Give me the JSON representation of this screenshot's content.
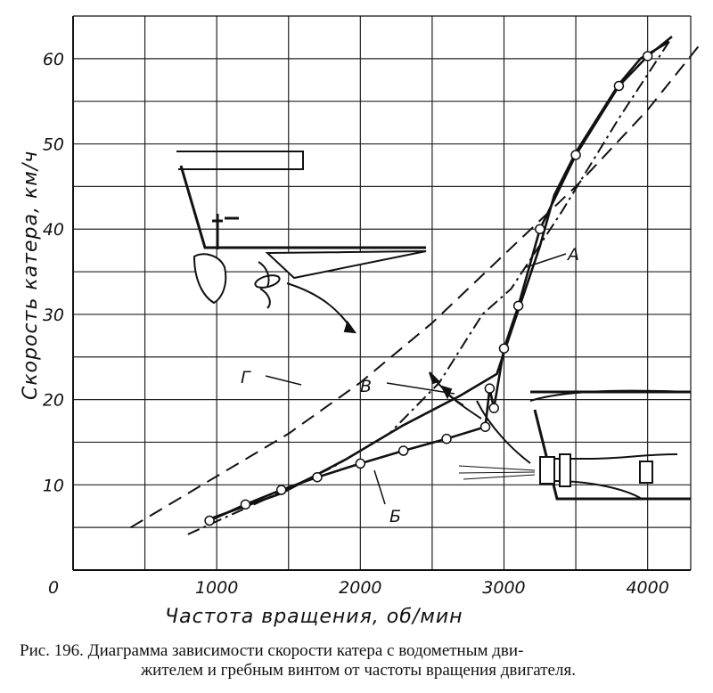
{
  "chart_data": {
    "type": "line",
    "xlabel": "Частота вращения, об/мин",
    "ylabel": "Скорость катера, км/ч",
    "xlim": [
      0,
      4300
    ],
    "ylim": [
      0,
      65
    ],
    "grid": true,
    "x_ticks": [
      "0",
      "1000",
      "2000",
      "3000",
      "4000"
    ],
    "y_ticks": [
      "10",
      "20",
      "30",
      "40",
      "50",
      "60"
    ],
    "series": [
      {
        "name": "А",
        "style": "solid-markers",
        "x": [
          950,
          1450,
          1900,
          2300,
          2700,
          2950,
          3050,
          3150,
          3250,
          3350,
          3500,
          3650,
          3800,
          3950,
          4150
        ],
        "y": [
          6,
          9,
          13,
          17,
          20.5,
          23,
          28,
          33,
          38,
          44,
          49,
          53,
          57,
          60,
          62
        ]
      },
      {
        "name": "Б",
        "style": "solid-markers",
        "x": [
          950,
          1200,
          1450,
          1700,
          2000,
          2300,
          2600,
          2870,
          2900,
          2930,
          3000,
          3100,
          3250,
          3500,
          3800,
          4000,
          4170
        ],
        "y": [
          5.8,
          7.7,
          9.4,
          10.9,
          12.5,
          14,
          15.4,
          16.8,
          21.3,
          19,
          26,
          31,
          40,
          48.7,
          56.8,
          60.3,
          62.6
        ]
      },
      {
        "name": "В",
        "style": "dash-dot",
        "x": [
          800,
          1300,
          1800,
          2200,
          2550,
          2700,
          2850,
          3050,
          3400,
          3800,
          4150
        ],
        "y": [
          4.2,
          8,
          12,
          16,
          22,
          26,
          30,
          33,
          42,
          53,
          62
        ]
      },
      {
        "name": "Г",
        "style": "long-dash",
        "x": [
          400,
          900,
          1500,
          2000,
          2500,
          3000,
          3500,
          4000,
          4380
        ],
        "y": [
          5,
          10,
          16,
          22,
          29,
          37,
          45,
          54,
          62
        ]
      }
    ],
    "labels": [
      "А",
      "Б",
      "В",
      "Г"
    ]
  },
  "caption": {
    "line1": "Рис. 196. Диаграмма зависимости скорости катера с водометным дви-",
    "line2": "жителем и гребным винтом от частоты вращения двигателя."
  }
}
